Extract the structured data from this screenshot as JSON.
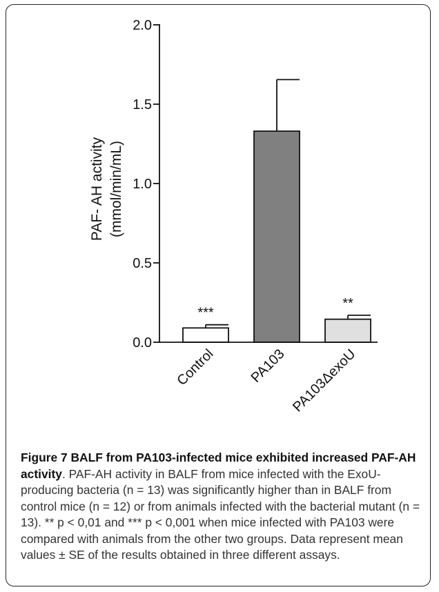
{
  "chart_data": {
    "type": "bar",
    "ylabel_line1": "PAF- AH activity",
    "ylabel_line2": "(mmol/min/mL)",
    "ylim": [
      0,
      2.0
    ],
    "ticks": [
      {
        "value": 0.0,
        "label": "0.0"
      },
      {
        "value": 0.5,
        "label": "0.5"
      },
      {
        "value": 1.0,
        "label": "1.0"
      },
      {
        "value": 1.5,
        "label": "1.5"
      },
      {
        "value": 2.0,
        "label": "2.0"
      }
    ],
    "categories": [
      "Control",
      "PA103",
      "PA103ΔexoU"
    ],
    "values": [
      0.09,
      1.33,
      0.145
    ],
    "errors": [
      0.02,
      0.325,
      0.025
    ],
    "annotations": [
      "***",
      "",
      "**"
    ],
    "colors": [
      "#ffffff",
      "#808080",
      "#e0e0e0"
    ],
    "grid": false
  },
  "caption": {
    "lead": "Figure 7 BALF from PA103-infected mice exhibited increased PAF-AH activity",
    "body": ". PAF-AH activity in BALF from mice infected with the ExoU-producing bacteria (n = 13) was significantly higher than in BALF from control mice (n = 12) or from animals infected with the bacterial mutant (n = 13). ** p < 0,01 and *** p < 0,001 when mice infected with PA103 were compared with animals from the other two groups. Data represent mean values ± SE of the results obtained in three different assays."
  }
}
